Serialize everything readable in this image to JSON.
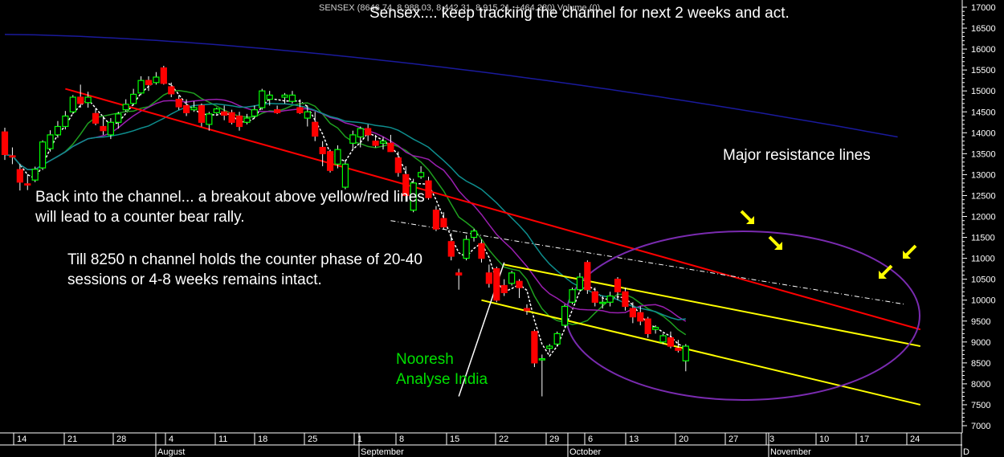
{
  "header": {
    "ticker_line": "SENSEX (8646.74, 8,988.03, 8,442.31, 8,915.21, +464.280) Volume (0)"
  },
  "annotations": {
    "title": "Sensex.... keep tracking the channel for next 2 weeks and act.",
    "resistance": "Major resistance lines",
    "channel_line1": "Back into the channel... a breakout above yellow/red lines",
    "channel_line2": "will lead to a counter bear rally.",
    "hold_line1": "Till 8250 n channel holds the counter phase of 20-40",
    "hold_line2": "sessions or 4-8 weeks remains intact.",
    "author_line1": "Nooresh",
    "author_line2": "Analyse India"
  },
  "colors": {
    "background": "#000000",
    "up_candle": "#00ff00",
    "down_candle": "#ff0000",
    "ma_fast": "#ffffff",
    "ma_green": "#1fa01f",
    "ma_purple": "#9a1fb0",
    "ma_teal": "#0e8e8e",
    "ma_navy": "#1a1a9c",
    "resistance_red": "#ff0000",
    "channel_yellow": "#ffff00",
    "ellipse": "#7a2bb0",
    "arrows": "#ffff00"
  },
  "chart_data": {
    "type": "candlestick",
    "ylim": [
      7000,
      17000
    ],
    "y_ticks": [
      7000,
      7500,
      8000,
      8500,
      9000,
      9500,
      10000,
      10500,
      11000,
      11500,
      12000,
      12500,
      13000,
      13500,
      14000,
      14500,
      15000,
      15500,
      16000,
      16500,
      17000
    ],
    "day_labels": [
      "14",
      "21",
      "28",
      "4",
      "11",
      "18",
      "25",
      "1",
      "8",
      "15",
      "22",
      "29",
      "6",
      "13",
      "20",
      "27",
      "3",
      "10",
      "17",
      "24"
    ],
    "month_labels": [
      "August",
      "September",
      "October",
      "November",
      "D"
    ],
    "candles": [
      {
        "o": 14020,
        "h": 14120,
        "l": 13350,
        "c": 13480
      },
      {
        "o": 13450,
        "h": 13650,
        "l": 13250,
        "c": 13420
      },
      {
        "o": 13120,
        "h": 13260,
        "l": 12620,
        "c": 12820
      },
      {
        "o": 12780,
        "h": 13010,
        "l": 12630,
        "c": 12760
      },
      {
        "o": 12870,
        "h": 13190,
        "l": 12820,
        "c": 13130
      },
      {
        "o": 13160,
        "h": 13820,
        "l": 13110,
        "c": 13780
      },
      {
        "o": 13620,
        "h": 14060,
        "l": 13550,
        "c": 13950
      },
      {
        "o": 13950,
        "h": 14280,
        "l": 13880,
        "c": 14150
      },
      {
        "o": 14150,
        "h": 14520,
        "l": 14080,
        "c": 14400
      },
      {
        "o": 14500,
        "h": 14900,
        "l": 14450,
        "c": 14850
      },
      {
        "o": 14850,
        "h": 15150,
        "l": 14600,
        "c": 14700
      },
      {
        "o": 14720,
        "h": 14980,
        "l": 14600,
        "c": 14850
      },
      {
        "o": 14460,
        "h": 14580,
        "l": 14180,
        "c": 14230
      },
      {
        "o": 14150,
        "h": 14400,
        "l": 13950,
        "c": 14050
      },
      {
        "o": 13950,
        "h": 14350,
        "l": 13850,
        "c": 14250
      },
      {
        "o": 14250,
        "h": 14500,
        "l": 14100,
        "c": 14450
      },
      {
        "o": 14550,
        "h": 14800,
        "l": 14500,
        "c": 14680
      },
      {
        "o": 14700,
        "h": 15050,
        "l": 14650,
        "c": 14920
      },
      {
        "o": 14950,
        "h": 15350,
        "l": 14900,
        "c": 15250
      },
      {
        "o": 15250,
        "h": 15350,
        "l": 15000,
        "c": 15150
      },
      {
        "o": 15200,
        "h": 15450,
        "l": 15150,
        "c": 15330
      },
      {
        "o": 15550,
        "h": 15600,
        "l": 15150,
        "c": 15180
      },
      {
        "o": 15100,
        "h": 15200,
        "l": 14850,
        "c": 14930
      },
      {
        "o": 14800,
        "h": 14900,
        "l": 14550,
        "c": 14620
      },
      {
        "o": 14650,
        "h": 14800,
        "l": 14400,
        "c": 14480
      },
      {
        "o": 14550,
        "h": 14750,
        "l": 14500,
        "c": 14600
      },
      {
        "o": 14650,
        "h": 14700,
        "l": 14150,
        "c": 14250
      },
      {
        "o": 14200,
        "h": 14500,
        "l": 14050,
        "c": 14450
      },
      {
        "o": 14480,
        "h": 14600,
        "l": 14450,
        "c": 14570
      },
      {
        "o": 14500,
        "h": 14650,
        "l": 14300,
        "c": 14420
      },
      {
        "o": 14480,
        "h": 14550,
        "l": 14200,
        "c": 14250
      },
      {
        "o": 14400,
        "h": 14500,
        "l": 14050,
        "c": 14150
      },
      {
        "o": 14250,
        "h": 14450,
        "l": 14200,
        "c": 14350
      },
      {
        "o": 14400,
        "h": 14650,
        "l": 14350,
        "c": 14550
      },
      {
        "o": 14600,
        "h": 15050,
        "l": 14550,
        "c": 15000
      },
      {
        "o": 14800,
        "h": 15000,
        "l": 14650,
        "c": 14900
      },
      {
        "o": 14550,
        "h": 14650,
        "l": 14450,
        "c": 14480
      },
      {
        "o": 14850,
        "h": 14950,
        "l": 14700,
        "c": 14900
      },
      {
        "o": 14750,
        "h": 15000,
        "l": 14700,
        "c": 14900
      },
      {
        "o": 14600,
        "h": 14800,
        "l": 14450,
        "c": 14480
      },
      {
        "o": 14350,
        "h": 14650,
        "l": 14150,
        "c": 14500
      },
      {
        "o": 14250,
        "h": 14500,
        "l": 13800,
        "c": 13920
      },
      {
        "o": 13650,
        "h": 13800,
        "l": 13200,
        "c": 13500
      },
      {
        "o": 13550,
        "h": 13600,
        "l": 13050,
        "c": 13100
      },
      {
        "o": 13250,
        "h": 13700,
        "l": 13150,
        "c": 13600
      },
      {
        "o": 12700,
        "h": 13350,
        "l": 12650,
        "c": 13250
      },
      {
        "o": 13750,
        "h": 14050,
        "l": 13600,
        "c": 13950
      },
      {
        "o": 13900,
        "h": 14150,
        "l": 13650,
        "c": 14100
      },
      {
        "o": 14100,
        "h": 14200,
        "l": 13800,
        "c": 13950
      },
      {
        "o": 13800,
        "h": 13950,
        "l": 13650,
        "c": 13700
      },
      {
        "o": 13750,
        "h": 13900,
        "l": 13600,
        "c": 13800
      },
      {
        "o": 13750,
        "h": 13950,
        "l": 13550,
        "c": 13550
      },
      {
        "o": 13400,
        "h": 13550,
        "l": 12950,
        "c": 13050
      },
      {
        "o": 13000,
        "h": 13200,
        "l": 12350,
        "c": 12500
      },
      {
        "o": 12150,
        "h": 12900,
        "l": 12100,
        "c": 12800
      },
      {
        "o": 12950,
        "h": 13200,
        "l": 12900,
        "c": 13050
      },
      {
        "o": 12850,
        "h": 12950,
        "l": 12400,
        "c": 12450
      },
      {
        "o": 12150,
        "h": 12250,
        "l": 11650,
        "c": 11700
      },
      {
        "o": 11950,
        "h": 12100,
        "l": 11700,
        "c": 11750
      },
      {
        "o": 11400,
        "h": 11600,
        "l": 10950,
        "c": 11050
      },
      {
        "o": 10650,
        "h": 10750,
        "l": 10250,
        "c": 10600
      },
      {
        "o": 11000,
        "h": 11550,
        "l": 10950,
        "c": 11450
      },
      {
        "o": 11500,
        "h": 11700,
        "l": 11400,
        "c": 11650
      },
      {
        "o": 11350,
        "h": 11450,
        "l": 10900,
        "c": 11000
      },
      {
        "o": 10650,
        "h": 10850,
        "l": 10300,
        "c": 10400
      },
      {
        "o": 10750,
        "h": 10800,
        "l": 9950,
        "c": 10000
      },
      {
        "o": 10350,
        "h": 10500,
        "l": 10100,
        "c": 10180
      },
      {
        "o": 10400,
        "h": 10700,
        "l": 10350,
        "c": 10650
      },
      {
        "o": 10450,
        "h": 10500,
        "l": 10050,
        "c": 10300
      },
      {
        "o": 9800,
        "h": 9900,
        "l": 9650,
        "c": 9750
      },
      {
        "o": 9250,
        "h": 9300,
        "l": 8400,
        "c": 8500
      },
      {
        "o": 8600,
        "h": 8700,
        "l": 7700,
        "c": 8600
      },
      {
        "o": 8850,
        "h": 8950,
        "l": 8750,
        "c": 8900
      },
      {
        "o": 8950,
        "h": 9250,
        "l": 8900,
        "c": 9200
      },
      {
        "o": 9400,
        "h": 9900,
        "l": 9350,
        "c": 9850
      },
      {
        "o": 9950,
        "h": 10300,
        "l": 9900,
        "c": 10250
      },
      {
        "o": 10250,
        "h": 10650,
        "l": 10200,
        "c": 10550
      },
      {
        "o": 10900,
        "h": 10950,
        "l": 10150,
        "c": 10250
      },
      {
        "o": 10200,
        "h": 10300,
        "l": 9850,
        "c": 9950
      },
      {
        "o": 9950,
        "h": 10100,
        "l": 9800,
        "c": 9950
      },
      {
        "o": 9950,
        "h": 10200,
        "l": 9850,
        "c": 10100
      },
      {
        "o": 10500,
        "h": 10550,
        "l": 10000,
        "c": 10200
      },
      {
        "o": 10200,
        "h": 10300,
        "l": 9750,
        "c": 9850
      },
      {
        "o": 9800,
        "h": 9950,
        "l": 9450,
        "c": 9600
      },
      {
        "o": 9700,
        "h": 9850,
        "l": 9400,
        "c": 9500
      },
      {
        "o": 9550,
        "h": 9600,
        "l": 9100,
        "c": 9200
      },
      {
        "o": 9300,
        "h": 9400,
        "l": 9200,
        "c": 9350
      },
      {
        "o": 9000,
        "h": 9200,
        "l": 8950,
        "c": 9150
      },
      {
        "o": 9100,
        "h": 9250,
        "l": 8850,
        "c": 8900
      },
      {
        "o": 8850,
        "h": 9050,
        "l": 8750,
        "c": 8800
      },
      {
        "o": 8550,
        "h": 8950,
        "l": 8300,
        "c": 8900
      }
    ],
    "trendlines": [
      {
        "name": "resistance-red",
        "from": [
          8,
          15050
        ],
        "to": [
          121,
          9300
        ]
      },
      {
        "name": "channel-upper-yellow",
        "from": [
          66,
          10850
        ],
        "to": [
          121,
          8900
        ]
      },
      {
        "name": "channel-lower-yellow",
        "from": [
          63,
          10000
        ],
        "to": [
          121,
          7500
        ]
      },
      {
        "name": "resistance-dashed",
        "from": [
          51,
          11900
        ],
        "to": [
          119,
          9900
        ]
      },
      {
        "name": "swing-line",
        "from": [
          60,
          7700
        ],
        "to": [
          66,
          10900
        ]
      }
    ]
  }
}
